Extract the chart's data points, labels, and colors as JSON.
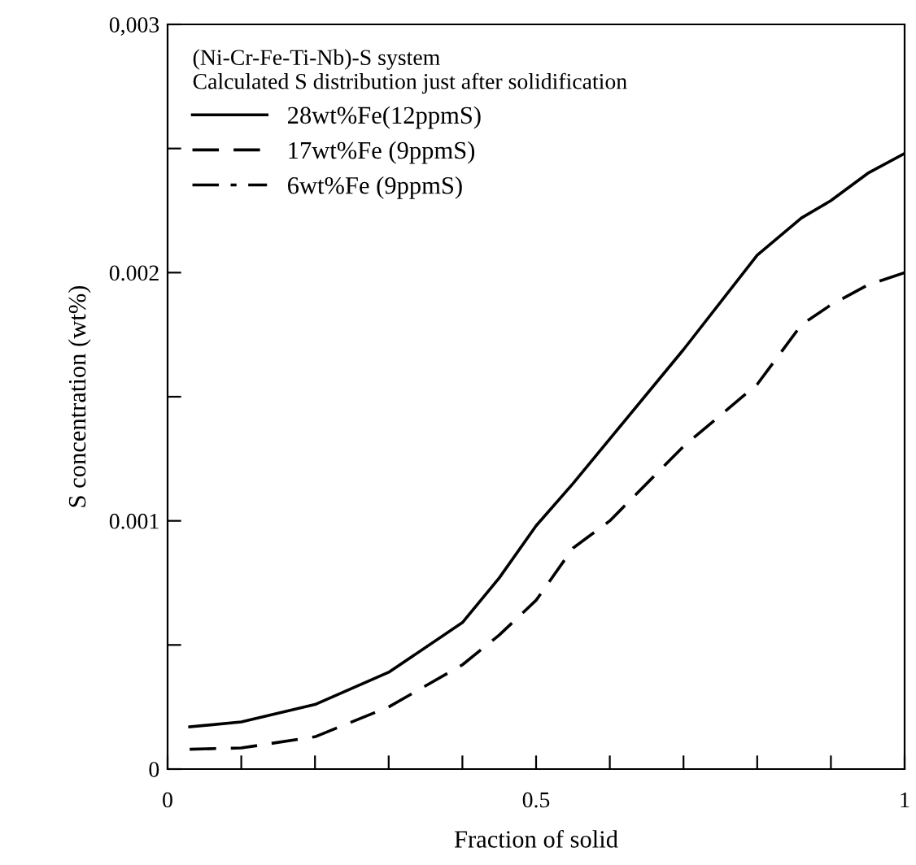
{
  "chart_data": {
    "type": "line",
    "legend_title": "(Ni-Cr-Fe-Ti-Nb)-S system\nCalculated S distribution just after solidification",
    "xlabel": "Fraction of solid",
    "ylabel": "S concentration (wt%)",
    "xlim": [
      0,
      1
    ],
    "ylim": [
      0,
      0.003
    ],
    "xticks": [
      0,
      {
        "value": 0.1,
        "label": null
      },
      {
        "value": 0.2,
        "label": null
      },
      {
        "value": 0.3,
        "label": null
      },
      {
        "value": 0.4,
        "label": null
      },
      0.5,
      {
        "value": 0.6,
        "label": null
      },
      {
        "value": 0.7,
        "label": null
      },
      {
        "value": 0.8,
        "label": null
      },
      {
        "value": 0.9,
        "label": null
      },
      1
    ],
    "yticks": [
      0,
      {
        "value": 0.0005,
        "label": null
      },
      0.001,
      {
        "value": 0.0015,
        "label": null
      },
      0.002,
      {
        "value": 0.0025,
        "label": null
      },
      {
        "value": 0.003,
        "label": "0,003"
      }
    ],
    "x": [
      0.03,
      0.1,
      0.2,
      0.3,
      0.4,
      0.45,
      0.5,
      0.55,
      0.6,
      0.7,
      0.8,
      0.86,
      0.9,
      0.95,
      1.0
    ],
    "series": [
      {
        "name": "28wt%Fe(12ppmS)",
        "color": "#000000",
        "line_style": "solid",
        "values": [
          0.00017,
          0.00019,
          0.00026,
          0.00039,
          0.00059,
          0.00077,
          0.00098,
          0.00115,
          0.00133,
          0.00169,
          0.00207,
          0.00222,
          0.00229,
          0.0024,
          0.00248
        ]
      },
      {
        "name": "17wt%Fe (9ppmS)",
        "color": "#000000",
        "line_style": "dashed",
        "values": [
          8e-05,
          8.5e-05,
          0.00013,
          0.00025,
          0.00042,
          0.00054,
          0.00068,
          0.00089,
          0.001,
          0.0013,
          0.00155,
          0.00179,
          0.00187,
          0.00195,
          0.002
        ]
      },
      {
        "name": "6wt%Fe (9ppmS)",
        "color": "#000000",
        "line_style": "dashdot",
        "values": [
          null,
          null,
          null,
          null,
          null,
          null,
          null,
          null,
          null,
          null,
          null,
          null,
          null,
          null,
          null
        ]
      }
    ],
    "legend": "top left",
    "grid": false,
    "marker": "none"
  }
}
